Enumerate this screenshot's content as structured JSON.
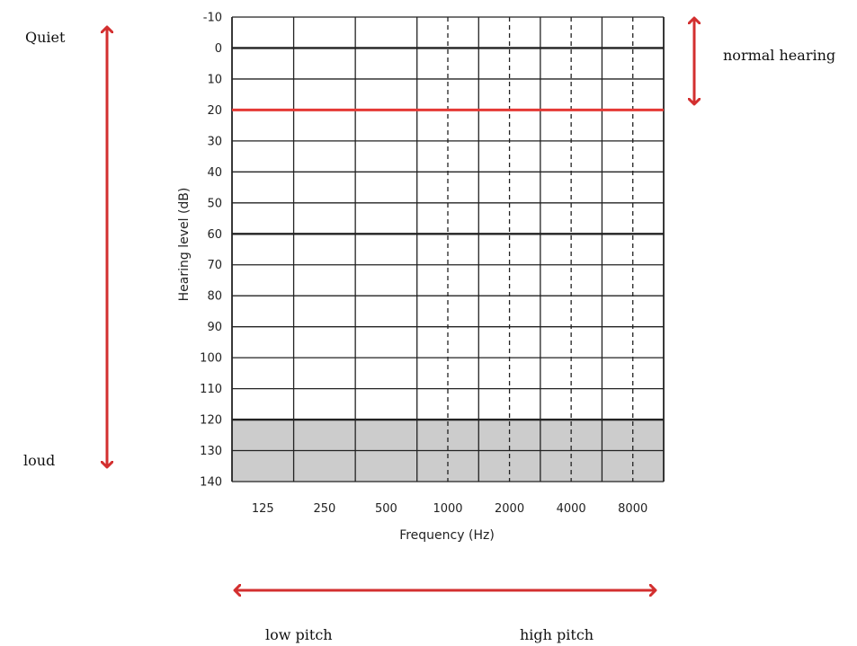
{
  "chart_data": {
    "type": "table",
    "xlabel": "Frequency (Hz)",
    "ylabel": "Hearing level (dB)",
    "x_ticks": [
      "125",
      "250",
      "500",
      "1000",
      "2000",
      "4000",
      "8000"
    ],
    "y_ticks": [
      "-10",
      "0",
      "10",
      "20",
      "30",
      "40",
      "50",
      "60",
      "70",
      "80",
      "90",
      "100",
      "110",
      "120",
      "130",
      "140"
    ],
    "ylim": [
      -10,
      140
    ],
    "grid": true,
    "y_inverted": true,
    "reference_line": {
      "value": 20,
      "color": "#e53935"
    },
    "shaded_region": {
      "from": 120,
      "to": 140,
      "color": "#cccccc"
    }
  },
  "annotations": {
    "quiet": "Quiet",
    "loud": "loud",
    "normal_hearing": "normal hearing",
    "low_pitch": "low pitch",
    "high_pitch": "high pitch"
  },
  "colors": {
    "arrow": "#d32f2f",
    "reference": "#e53935",
    "shade": "#cccccc",
    "grid": "#222222"
  }
}
